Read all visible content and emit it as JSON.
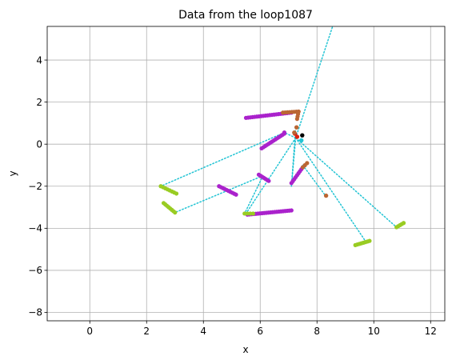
{
  "chart_data": {
    "type": "scatter",
    "title": "Data from the loop1087",
    "xlabel": "x",
    "ylabel": "y",
    "xlim": [
      -1.5,
      12.5
    ],
    "ylim": [
      -8.4,
      5.6
    ],
    "xticks": [
      0,
      2,
      4,
      6,
      8,
      10,
      12
    ],
    "xtick_labels": [
      "0",
      "2",
      "4",
      "6",
      "8",
      "10",
      "12"
    ],
    "yticks": [
      4,
      2,
      0,
      -2,
      -4,
      -6,
      -8
    ],
    "ytick_labels": [
      "4",
      "2",
      "0",
      "−2",
      "−4",
      "−6",
      "−8"
    ],
    "grid": true,
    "colors": {
      "purple": "#aa22cc",
      "olive": "#99cc22",
      "brown": "#bb6633",
      "cyan": "#22c4d4",
      "red": "#dd2211",
      "black": "#000000",
      "grid": "#b0b0b0"
    },
    "dotted_lines": [
      {
        "x": [
          7.25,
          8.55
        ],
        "y": [
          0.3,
          5.6
        ]
      },
      {
        "x": [
          7.25,
          6.85
        ],
        "y": [
          0.3,
          0.55
        ]
      },
      {
        "x": [
          6.85,
          2.5
        ],
        "y": [
          0.55,
          -2.0
        ]
      },
      {
        "x": [
          7.25,
          5.5
        ],
        "y": [
          0.3,
          -3.3
        ]
      },
      {
        "x": [
          7.25,
          7.1
        ],
        "y": [
          0.3,
          -2.0
        ]
      },
      {
        "x": [
          7.1,
          7.25
        ],
        "y": [
          -2.0,
          0.8
        ]
      },
      {
        "x": [
          7.25,
          9.7
        ],
        "y": [
          0.3,
          -4.6
        ]
      },
      {
        "x": [
          7.25,
          10.8
        ],
        "y": [
          0.3,
          -3.95
        ]
      },
      {
        "x": [
          6.1,
          5.45
        ],
        "y": [
          -1.5,
          -3.3
        ]
      },
      {
        "x": [
          6.1,
          3.0
        ],
        "y": [
          -1.5,
          -3.25
        ]
      },
      {
        "x": [
          3.0,
          2.6
        ],
        "y": [
          -3.25,
          -2.8
        ]
      },
      {
        "x": [
          7.5,
          8.3
        ],
        "y": [
          -1.0,
          -2.45
        ]
      }
    ],
    "segments": [
      {
        "color": "purple",
        "x": [
          5.5,
          7.1
        ],
        "y": [
          1.25,
          1.5
        ],
        "n": 22
      },
      {
        "color": "brown",
        "x": [
          6.8,
          7.35
        ],
        "y": [
          1.5,
          1.55
        ],
        "n": 8
      },
      {
        "color": "brown",
        "x": [
          7.35,
          7.3
        ],
        "y": [
          1.55,
          1.2
        ],
        "n": 4
      },
      {
        "color": "purple",
        "x": [
          6.05,
          6.85
        ],
        "y": [
          -0.2,
          0.5
        ],
        "n": 14
      },
      {
        "color": "purple",
        "x": [
          4.55,
          5.15
        ],
        "y": [
          -2.0,
          -2.4
        ],
        "n": 10
      },
      {
        "color": "purple",
        "x": [
          5.55,
          7.1
        ],
        "y": [
          -3.35,
          -3.15
        ],
        "n": 22
      },
      {
        "color": "purple",
        "x": [
          5.95,
          6.3
        ],
        "y": [
          -1.45,
          -1.75
        ],
        "n": 7
      },
      {
        "color": "purple",
        "x": [
          7.1,
          7.5
        ],
        "y": [
          -1.85,
          -1.1
        ],
        "n": 9
      },
      {
        "color": "brown",
        "x": [
          7.5,
          7.65
        ],
        "y": [
          -1.1,
          -0.9
        ],
        "n": 3
      },
      {
        "color": "olive",
        "x": [
          2.5,
          3.05
        ],
        "y": [
          -2.0,
          -2.35
        ],
        "n": 8
      },
      {
        "color": "olive",
        "x": [
          2.6,
          3.0
        ],
        "y": [
          -2.8,
          -3.25
        ],
        "n": 8
      },
      {
        "color": "olive",
        "x": [
          5.45,
          5.75
        ],
        "y": [
          -3.3,
          -3.3
        ],
        "n": 4
      },
      {
        "color": "olive",
        "x": [
          9.35,
          9.85
        ],
        "y": [
          -4.8,
          -4.6
        ],
        "n": 8
      },
      {
        "color": "olive",
        "x": [
          10.8,
          11.05
        ],
        "y": [
          -3.95,
          -3.75
        ],
        "n": 5
      }
    ],
    "points": [
      {
        "color": "red",
        "x": 7.22,
        "y": 0.5
      },
      {
        "color": "red",
        "x": 7.3,
        "y": 0.35
      },
      {
        "color": "brown",
        "x": 7.2,
        "y": 0.55
      },
      {
        "color": "brown",
        "x": 7.28,
        "y": 0.8
      },
      {
        "color": "cyan",
        "x": 7.45,
        "y": 0.18
      },
      {
        "color": "black",
        "x": 7.48,
        "y": 0.42
      },
      {
        "color": "brown",
        "x": 8.32,
        "y": -2.45
      },
      {
        "color": "purple",
        "x": 6.85,
        "y": 0.55
      }
    ]
  }
}
